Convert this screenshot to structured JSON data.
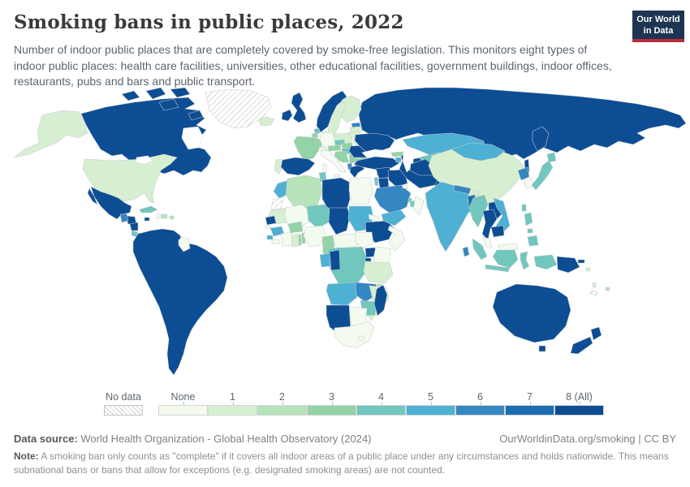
{
  "header": {
    "title": "Smoking bans in public places, 2022",
    "subtitle": "Number of indoor public places that are completely covered by smoke-free legislation. This monitors eight types of indoor public places: health care facilities, universities, other educational facilities, government buildings, indoor offices, restaurants, pubs and bars and public transport.",
    "logo_line1": "Our World",
    "logo_line2": "in Data",
    "logo_bg": "#1d3552",
    "logo_red": "#b82e3b"
  },
  "legend": {
    "no_data_label": "No data",
    "bin_labels": [
      "None",
      "1",
      "2",
      "3",
      "4",
      "5",
      "6",
      "7",
      "8 (All)"
    ]
  },
  "footer": {
    "source_label": "Data source:",
    "source_text": " World Health Organization - Global Health Observatory (2024)",
    "link_text": "OurWorldinData.org/smoking | CC BY",
    "note_label": "Note:",
    "note_text": " A smoking ban only counts as \"complete\" if it covers all indoor areas of a public place under any circumstances and holds nationwide. This means subnational bans or bans that allow for exceptions (e.g. designated smoking areas) are not counted."
  },
  "chart_data": {
    "type": "choropleth-map",
    "title": "Smoking bans in public places, 2022",
    "unit": "number of indoor public place types covered (0–8)",
    "legend_bins": [
      "None",
      "1",
      "2",
      "3",
      "4",
      "5",
      "6",
      "7",
      "8 (All)"
    ],
    "colors": [
      "#f2fbee",
      "#d7efd1",
      "#b6e3ba",
      "#93d3a5",
      "#71c6bd",
      "#4eb0d2",
      "#3487c1",
      "#1c6cb1",
      "#0d4d93"
    ],
    "no_data_color": "hatched",
    "countries": {
      "canada": 8,
      "usa": 1,
      "greenland": "nd",
      "mexico": 8,
      "guatemala": 6,
      "honduras": 8,
      "nicaragua": 8,
      "costa-rica": 4,
      "panama": 8,
      "cuba": 4,
      "jamaica": 8,
      "haiti": 0,
      "dominican-republic": 2,
      "puerto-rico": 2,
      "south-america": 8,
      "guyana": 0,
      "iceland": 1,
      "ireland": 8,
      "uk": 8,
      "norway": 8,
      "sweden": 1,
      "finland": 1,
      "denmark": 0,
      "estonia": 6,
      "latvia": 1,
      "lithuania": 1,
      "belarus": 1,
      "poland": 1,
      "germany": 0,
      "netherlands": 4,
      "belgium": 3,
      "france": 3,
      "switzerland": 0,
      "czechia": 4,
      "austria": 3,
      "slovakia": 3,
      "hungary": 4,
      "croatia": 3,
      "serbia": 3,
      "albania": 6,
      "greece": 8,
      "romania": 8,
      "bulgaria": 3,
      "moldova": 3,
      "ukraine": 8,
      "portugal": 1,
      "spain": 8,
      "italy": 0,
      "russia": 8,
      "turkey": 8,
      "cyprus": 3,
      "georgia": 3,
      "armenia": 5,
      "azerbaijan": 8,
      "morocco": 5,
      "western-sahara": "nd",
      "algeria": 2,
      "tunisia": 4,
      "libya": 8,
      "egypt": 0,
      "mauritania": 1,
      "mali": 0,
      "senegal": 8,
      "guinea-bissau": 0,
      "guinea": 5,
      "sierra-leone": 5,
      "liberia": 0,
      "ivory-coast": 0,
      "ghana": 1,
      "togo": 3,
      "benin": 3,
      "burkina-faso": 3,
      "niger": 4,
      "nigeria": 0,
      "chad": 8,
      "sudan": 5,
      "eritrea": 0,
      "djibouti": 4,
      "ethiopia": 8,
      "somalia": 0,
      "cameroon": 3,
      "central-african-republic": 0,
      "south-sudan": 0,
      "uganda": 8,
      "kenya": 0,
      "rwanda": 8,
      "burundi": 8,
      "drc": 4,
      "gabon": 5,
      "congo": 8,
      "angola": 5,
      "zambia": 6,
      "tanzania": 1,
      "malawi": 2,
      "mozambique": 1,
      "zimbabwe": 4,
      "botswana": 0,
      "namibia": 8,
      "south-africa": 0,
      "lesotho": 0,
      "madagascar": 8,
      "syria": 8,
      "israel": 4,
      "jordan": 8,
      "iraq": 8,
      "saudi-arabia": 6,
      "kuwait": 0,
      "qatar": 4,
      "uae": 4,
      "oman": 0,
      "yemen": 5,
      "iran": 8,
      "afghanistan": 8,
      "pakistan": 8,
      "kazakhstan": 5,
      "uzbekistan": 4,
      "turkmenistan": 8,
      "kyrgyzstan": 8,
      "tajikistan": 8,
      "china": 1,
      "mongolia": 5,
      "north-korea": 6,
      "south-korea": 0,
      "japan": 4,
      "taiwan": 4,
      "myanmar": 4,
      "bangladesh": 7,
      "thailand": 8,
      "laos": 8,
      "vietnam": 5,
      "cambodia": 8,
      "india": 5,
      "nepal": 6,
      "bhutan": 1,
      "sri-lanka": 6,
      "malaysia": 0,
      "indonesia": 4,
      "philippines": 4,
      "papua-new-guinea": 8,
      "australia": 8,
      "new-zealand": 8,
      "fiji": 2,
      "vanuatu": 1,
      "solomon-islands": 1,
      "new-caledonia": "nd"
    }
  }
}
